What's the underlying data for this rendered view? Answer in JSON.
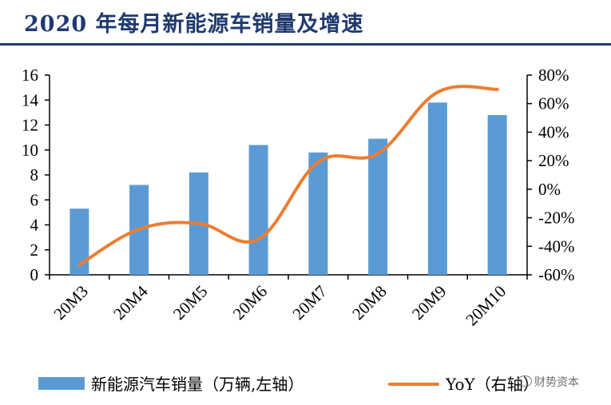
{
  "title": "2020 年每月新能源车销量及增速",
  "watermark": "财势资本",
  "chart_data": {
    "type": "bar+line",
    "categories": [
      "20M3",
      "20M4",
      "20M5",
      "20M6",
      "20M7",
      "20M8",
      "20M9",
      "20M10"
    ],
    "series": [
      {
        "name": "新能源汽车销量（万辆,左轴）",
        "type": "bar",
        "axis": "left",
        "color": "#5b9bd5",
        "values": [
          5.3,
          7.2,
          8.2,
          10.4,
          9.8,
          10.9,
          13.8,
          12.8
        ]
      },
      {
        "name": "YoY（右轴）",
        "type": "line",
        "axis": "right",
        "color": "#ed7d31",
        "values": [
          -53,
          -28,
          -24,
          -35,
          19,
          25,
          68,
          70
        ]
      }
    ],
    "left_axis": {
      "min": 0,
      "max": 16,
      "ticks": [
        0,
        2,
        4,
        6,
        8,
        10,
        12,
        14,
        16
      ],
      "tick_labels": [
        "0",
        "2",
        "4",
        "6",
        "8",
        "10",
        "12",
        "14",
        "16"
      ]
    },
    "right_axis": {
      "min": -60,
      "max": 80,
      "ticks": [
        -60,
        -40,
        -20,
        0,
        20,
        40,
        60,
        80
      ],
      "tick_labels": [
        "-60%",
        "-40%",
        "-20%",
        "0%",
        "20%",
        "40%",
        "60%",
        "80%"
      ]
    },
    "grid": false,
    "legend": "bottom"
  },
  "legend": {
    "bar_label": "新能源汽车销量（万辆,左轴）",
    "line_label": "YoY（右轴）"
  }
}
